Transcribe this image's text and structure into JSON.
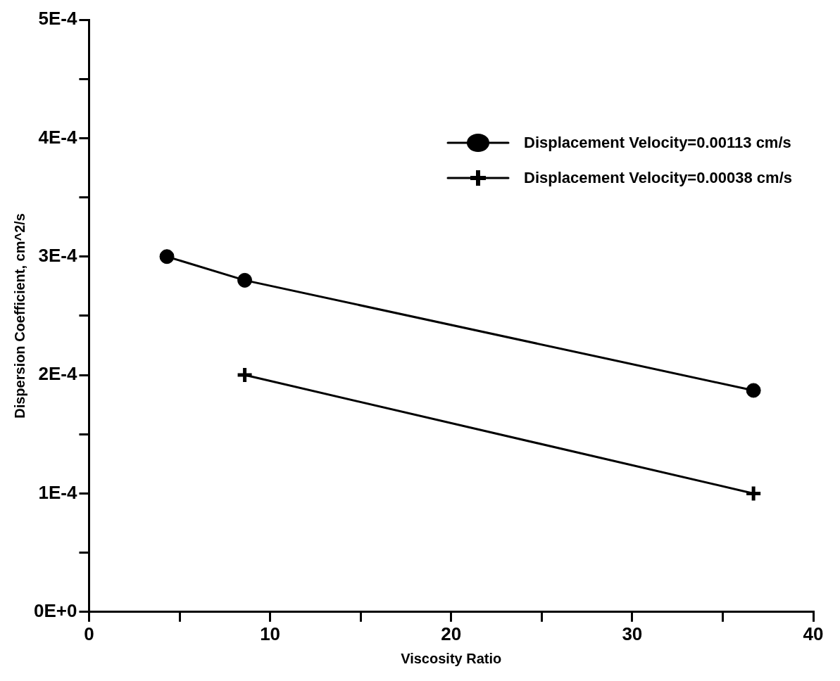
{
  "chart_data": {
    "type": "line",
    "xlabel": "Viscosity Ratio",
    "ylabel": "Dispersion Coefficient, cm^2/s",
    "xlim": [
      0,
      40
    ],
    "xticks": [
      0,
      {
        "value": 5,
        "label": null
      },
      10,
      {
        "value": 15,
        "label": null
      },
      20,
      {
        "value": 25,
        "label": null
      },
      30,
      {
        "value": 35,
        "label": null
      },
      40
    ],
    "ylim": [
      0,
      0.0005
    ],
    "yticks": [
      {
        "value": 0,
        "label": "0E+0"
      },
      {
        "value": 5e-05,
        "label": null
      },
      {
        "value": 0.0001,
        "label": "1E-4"
      },
      {
        "value": 0.00015,
        "label": null
      },
      {
        "value": 0.0002,
        "label": "2E-4"
      },
      {
        "value": 0.00025,
        "label": null
      },
      {
        "value": 0.0003,
        "label": "3E-4"
      },
      {
        "value": 0.00035,
        "label": null
      },
      {
        "value": 0.0004,
        "label": "4E-4"
      },
      {
        "value": 0.00045,
        "label": null
      },
      {
        "value": 0.0005,
        "label": "5E-4"
      }
    ],
    "grid": false,
    "legend": "top right",
    "line_style": "solid",
    "series": [
      {
        "name": "Displacement Velocity=0.00113 cm/s",
        "color": "#000000",
        "marker": "circle",
        "x": [
          4.3,
          8.6,
          36.7
        ],
        "values": [
          0.0003,
          0.00028,
          0.000187
        ]
      },
      {
        "name": "Displacement Velocity=0.00038 cm/s",
        "color": "#000000",
        "marker": "cross",
        "x": [
          8.6,
          36.7
        ],
        "values": [
          0.0002,
          0.0001
        ]
      }
    ]
  }
}
